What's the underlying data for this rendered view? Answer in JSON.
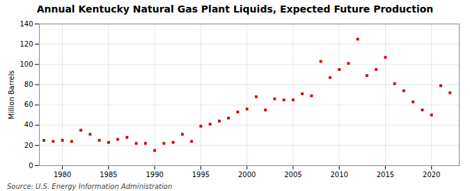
{
  "chart_data": {
    "type": "scatter",
    "title": "Annual Kentucky Natural Gas Plant Liquids, Expected Future Production",
    "ylabel": "Million Barrels",
    "source": "Source: U.S. Energy Information Administration",
    "x": [
      1978,
      1979,
      1980,
      1981,
      1982,
      1983,
      1984,
      1985,
      1986,
      1987,
      1988,
      1989,
      1990,
      1991,
      1992,
      1993,
      1994,
      1995,
      1996,
      1997,
      1998,
      1999,
      2000,
      2001,
      2002,
      2003,
      2004,
      2005,
      2006,
      2007,
      2008,
      2009,
      2010,
      2011,
      2012,
      2013,
      2014,
      2015,
      2016,
      2017,
      2018,
      2019,
      2020,
      2021,
      2022
    ],
    "values": [
      25,
      24,
      25,
      24,
      35,
      31,
      25,
      23,
      26,
      28,
      22,
      22,
      15,
      22,
      23,
      31,
      24,
      39,
      41,
      44,
      47,
      53,
      56,
      68,
      55,
      66,
      65,
      65,
      71,
      69,
      103,
      87,
      95,
      101,
      125,
      89,
      95,
      107,
      81,
      74,
      63,
      55,
      50,
      79,
      72
    ],
    "color": "#cc0000",
    "marker": "square",
    "xlim": [
      1977.5,
      2023
    ],
    "ylim": [
      0,
      140
    ],
    "xticks": [
      1980,
      1985,
      1990,
      1995,
      2000,
      2005,
      2010,
      2015,
      2020
    ],
    "yticks": [
      0,
      20,
      40,
      60,
      80,
      100,
      120,
      140
    ],
    "grid": true
  }
}
